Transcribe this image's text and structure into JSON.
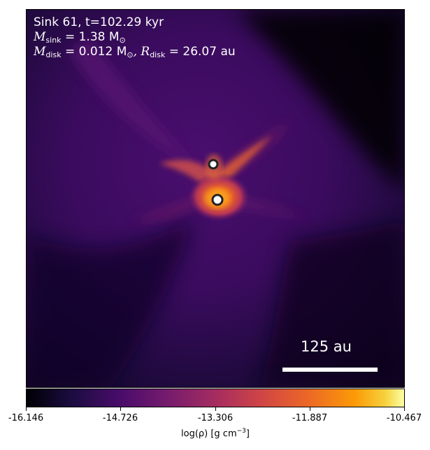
{
  "annotation": {
    "line1": "Sink 61, t=102.29 kyr",
    "sink_mass_label": "M",
    "sink_mass_sub": "sink",
    "sink_mass_value": "= 1.38 M",
    "sink_mass_unit_sub": "⊙",
    "disk_mass_label": "M",
    "disk_mass_sub": "disk",
    "disk_mass_value": "= 0.012 M",
    "disk_mass_unit_sub": "⊙",
    "disk_radius_label": ", R",
    "disk_radius_sub": "disk",
    "disk_radius_value": "= 26.07 au"
  },
  "scale_bar": {
    "label": "125 au"
  },
  "colorbar": {
    "ticks": [
      "-16.146",
      "-14.726",
      "-13.306",
      "-11.887",
      "-10.467"
    ],
    "label_prefix": "log(ρ) [g cm",
    "label_exp": "−3",
    "label_suffix": "]",
    "colormap": "inferno"
  }
}
